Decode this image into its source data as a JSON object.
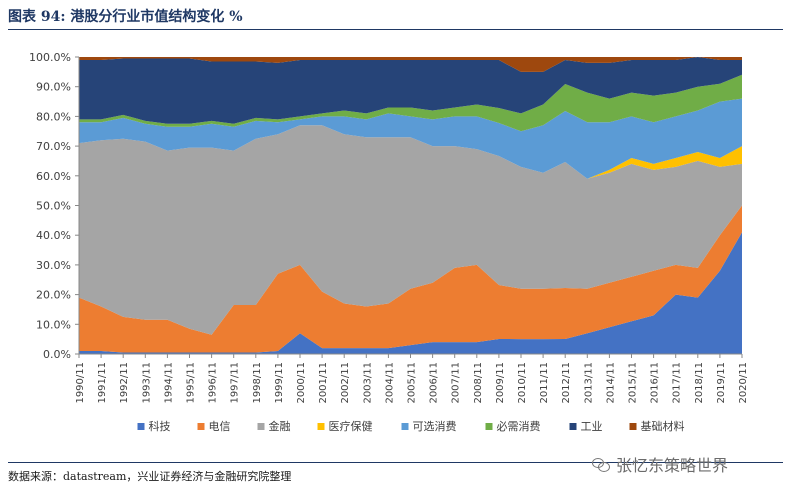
{
  "header": {
    "title": "图表 94:  港股分行业市值结构变化  %"
  },
  "footer": {
    "source": "数据来源：datastream，兴业证券经济与金融研究院整理",
    "watermark": "张忆东策略世界",
    "watermark_icon": "wechat-icon"
  },
  "chart_data": {
    "type": "area",
    "title": "港股分行业市值结构变化 %",
    "ylim": [
      0,
      100
    ],
    "ytick_labels": [
      "0.0%",
      "10.0%",
      "20.0%",
      "30.0%",
      "40.0%",
      "50.0%",
      "60.0%",
      "70.0%",
      "80.0%",
      "90.0%",
      "100.0%"
    ],
    "x": [
      "1990/11",
      "1991/11",
      "1992/11",
      "1993/11",
      "1994/11",
      "1995/11",
      "1996/11",
      "1997/11",
      "1998/11",
      "1999/11",
      "2000/11",
      "2001/11",
      "2002/11",
      "2003/11",
      "2004/11",
      "2005/11",
      "2006/11",
      "2007/11",
      "2008/11",
      "2009/11",
      "2010/11",
      "2011/11",
      "2012/11",
      "2013/11",
      "2014/11",
      "2015/11",
      "2016/11",
      "2017/11",
      "2018/11",
      "2019/11",
      "2020/11"
    ],
    "grid": false,
    "legend_position": "bottom",
    "colors": [
      "#4472c4",
      "#ed7d31",
      "#a5a5a5",
      "#ffc000",
      "#5b9bd5",
      "#70ad47",
      "#264478",
      "#9e480e"
    ],
    "series": [
      {
        "name": "科技",
        "values": [
          1,
          1,
          0.5,
          0.5,
          0.5,
          0.5,
          0.5,
          0.5,
          0.5,
          1,
          7,
          2,
          2,
          2,
          2,
          3,
          4,
          4,
          4,
          5,
          5,
          5,
          5,
          7,
          9,
          11,
          13,
          20,
          19,
          28,
          41
        ]
      },
      {
        "name": "电信",
        "values": [
          18,
          15,
          12,
          11,
          11,
          8,
          6,
          16,
          16,
          26,
          23,
          19,
          15,
          14,
          15,
          19,
          20,
          25,
          26,
          18,
          17,
          17,
          17,
          15,
          15,
          15,
          15,
          10,
          10,
          12,
          9
        ]
      },
      {
        "name": "金融",
        "values": [
          52,
          56,
          60,
          60,
          57,
          61,
          63,
          52,
          56,
          47,
          47,
          56,
          57,
          57,
          56,
          51,
          46,
          41,
          39,
          43,
          41,
          39,
          42,
          37,
          37,
          38,
          34,
          33,
          36,
          23,
          14
        ]
      },
      {
        "name": "医疗保健",
        "values": [
          0,
          0,
          0,
          0,
          0,
          0,
          0,
          0,
          0,
          0,
          0,
          0,
          0,
          0,
          0,
          0,
          0,
          0,
          0,
          0,
          0,
          0,
          0,
          0,
          1,
          2,
          2,
          3,
          3,
          3,
          6
        ]
      },
      {
        "name": "可选消费",
        "values": [
          7,
          6,
          7,
          6,
          8,
          7,
          8,
          8,
          6,
          4,
          2,
          3,
          6,
          6,
          8,
          7,
          9,
          10,
          11,
          11,
          12,
          16,
          17,
          19,
          16,
          14,
          14,
          14,
          14,
          19,
          16
        ]
      },
      {
        "name": "必需消费",
        "values": [
          1,
          1,
          1,
          1,
          1,
          1,
          1,
          1,
          1,
          1,
          1,
          1,
          2,
          2,
          2,
          3,
          3,
          3,
          4,
          5,
          6,
          7,
          9,
          10,
          8,
          8,
          9,
          8,
          8,
          6,
          8
        ]
      },
      {
        "name": "工业",
        "values": [
          20,
          20,
          19,
          21,
          22,
          22,
          20,
          21,
          19,
          19,
          19,
          18,
          17,
          18,
          16,
          16,
          17,
          16,
          15,
          16,
          14,
          11,
          8,
          10,
          12,
          11,
          12,
          11,
          10,
          8,
          5
        ]
      },
      {
        "name": "基础材料",
        "values": [
          1,
          1,
          0.5,
          0.5,
          0.5,
          0.5,
          1.5,
          1.5,
          1.5,
          2,
          1,
          1,
          1,
          1,
          1,
          1,
          1,
          1,
          1,
          1,
          5,
          5,
          1,
          2,
          2,
          1,
          1,
          1,
          0,
          1,
          1
        ]
      }
    ]
  }
}
